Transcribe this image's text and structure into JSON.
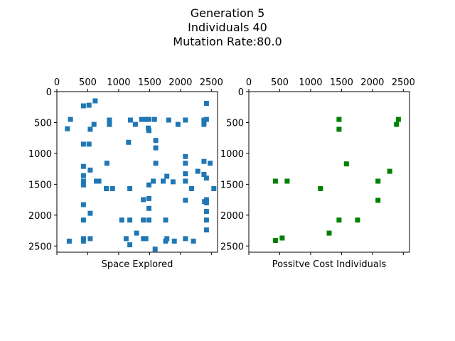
{
  "suptitle": [
    "Generation 5",
    "Individuals 40",
    "Mutation Rate:80.0"
  ],
  "chart_data": [
    {
      "type": "scatter",
      "name": "space",
      "xlabel": "Space Explored",
      "ylabel": "",
      "xlim": [
        0,
        2600
      ],
      "ylim": [
        2600,
        0
      ],
      "x_ticks": [
        0,
        500,
        1000,
        1500,
        2000,
        2500
      ],
      "y_ticks": [
        0,
        500,
        1000,
        1500,
        2000,
        2500
      ],
      "x_tick_position": "top",
      "y_inverted": true,
      "grid": false,
      "marker": "square",
      "color": "#1f77b4",
      "points": [
        [
          620,
          150
        ],
        [
          430,
          230
        ],
        [
          520,
          220
        ],
        [
          2420,
          190
        ],
        [
          220,
          450
        ],
        [
          600,
          530
        ],
        [
          850,
          460
        ],
        [
          1190,
          460
        ],
        [
          1270,
          530
        ],
        [
          1370,
          450
        ],
        [
          1440,
          450
        ],
        [
          1490,
          450
        ],
        [
          1580,
          450
        ],
        [
          1810,
          460
        ],
        [
          1960,
          530
        ],
        [
          2080,
          460
        ],
        [
          2380,
          460
        ],
        [
          2420,
          450
        ],
        [
          2380,
          530
        ],
        [
          170,
          600
        ],
        [
          540,
          610
        ],
        [
          850,
          530
        ],
        [
          1480,
          590
        ],
        [
          1490,
          630
        ],
        [
          430,
          850
        ],
        [
          520,
          850
        ],
        [
          1160,
          820
        ],
        [
          1600,
          790
        ],
        [
          1600,
          910
        ],
        [
          2080,
          1050
        ],
        [
          2380,
          1130
        ],
        [
          2480,
          1160
        ],
        [
          2080,
          1160
        ],
        [
          1600,
          1160
        ],
        [
          810,
          1160
        ],
        [
          430,
          1210
        ],
        [
          540,
          1270
        ],
        [
          430,
          1360
        ],
        [
          2080,
          1330
        ],
        [
          2280,
          1290
        ],
        [
          2380,
          1340
        ],
        [
          2420,
          1400
        ],
        [
          430,
          1450
        ],
        [
          640,
          1450
        ],
        [
          680,
          1450
        ],
        [
          1780,
          1370
        ],
        [
          1720,
          1450
        ],
        [
          1880,
          1460
        ],
        [
          1560,
          1450
        ],
        [
          2080,
          1450
        ],
        [
          430,
          1510
        ],
        [
          1490,
          1510
        ],
        [
          800,
          1570
        ],
        [
          900,
          1570
        ],
        [
          1180,
          1570
        ],
        [
          2180,
          1570
        ],
        [
          2540,
          1570
        ],
        [
          1400,
          1750
        ],
        [
          1490,
          1730
        ],
        [
          2080,
          1760
        ],
        [
          2390,
          1780
        ],
        [
          2420,
          1800
        ],
        [
          2420,
          1750
        ],
        [
          430,
          1830
        ],
        [
          1490,
          1890
        ],
        [
          540,
          1970
        ],
        [
          2420,
          1940
        ],
        [
          430,
          2080
        ],
        [
          1050,
          2080
        ],
        [
          1180,
          2080
        ],
        [
          1400,
          2080
        ],
        [
          1490,
          2080
        ],
        [
          1760,
          2080
        ],
        [
          2420,
          2080
        ],
        [
          1290,
          2290
        ],
        [
          2420,
          2240
        ],
        [
          200,
          2420
        ],
        [
          430,
          2380
        ],
        [
          430,
          2420
        ],
        [
          540,
          2380
        ],
        [
          1120,
          2380
        ],
        [
          1400,
          2380
        ],
        [
          1440,
          2380
        ],
        [
          1780,
          2380
        ],
        [
          1760,
          2420
        ],
        [
          1900,
          2420
        ],
        [
          2080,
          2380
        ],
        [
          2210,
          2420
        ],
        [
          1180,
          2480
        ],
        [
          1590,
          2550
        ]
      ]
    },
    {
      "type": "scatter",
      "name": "positive",
      "xlabel": "Possitve Cost Individuals",
      "ylabel": "",
      "xlim": [
        0,
        2600
      ],
      "ylim": [
        2600,
        0
      ],
      "x_ticks": [
        0,
        500,
        1000,
        1500,
        2000,
        2500
      ],
      "y_ticks": [
        0,
        500,
        1000,
        1500,
        2000,
        2500
      ],
      "x_tick_position": "top",
      "y_inverted": true,
      "grid": false,
      "marker": "square",
      "color": "#008000",
      "points": [
        [
          1460,
          450
        ],
        [
          2420,
          450
        ],
        [
          2390,
          530
        ],
        [
          1460,
          610
        ],
        [
          1580,
          1170
        ],
        [
          2280,
          1290
        ],
        [
          430,
          1450
        ],
        [
          620,
          1450
        ],
        [
          2090,
          1450
        ],
        [
          1160,
          1570
        ],
        [
          2090,
          1760
        ],
        [
          1460,
          2080
        ],
        [
          1760,
          2080
        ],
        [
          1300,
          2290
        ],
        [
          540,
          2370
        ],
        [
          430,
          2410
        ]
      ]
    }
  ]
}
